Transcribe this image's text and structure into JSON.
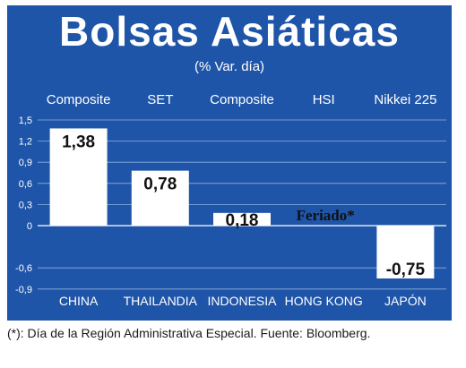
{
  "header": {
    "title": "Bolsas Asiáticas",
    "subtitle": "(% Var. día)"
  },
  "footnote": "(*): Día de la Región Administrativa Especial. Fuente: Bloomberg.",
  "colors": {
    "panel": "#1f55a8",
    "bar": "#ffffff",
    "grid": "#8fb0de",
    "text": "#ffffff",
    "value_text": "#111111"
  },
  "chart_data": {
    "type": "bar",
    "title": "Bolsas Asiáticas",
    "subtitle": "(% Var. día)",
    "categories": [
      "CHINA",
      "THAILANDIA",
      "INDONESIA",
      "HONG KONG",
      "JAPÓN"
    ],
    "index_names": [
      "Composite",
      "SET",
      "Composite",
      "HSI",
      "Nikkei 225"
    ],
    "values": [
      1.38,
      0.78,
      0.18,
      null,
      -0.75
    ],
    "data_labels": [
      "1,38",
      "0,78",
      "0,18",
      "Feriado*",
      "-0,75"
    ],
    "yticks": [
      1.5,
      1.2,
      0.9,
      0.6,
      0.3,
      0,
      -0.6,
      -0.9
    ],
    "ytick_labels": [
      "1,5",
      "1,2",
      "0,9",
      "0,6",
      "0,3",
      "0",
      "-0,6",
      "-0,9"
    ],
    "ylim": [
      -0.9,
      1.5
    ],
    "grid": true,
    "legend": "none"
  }
}
